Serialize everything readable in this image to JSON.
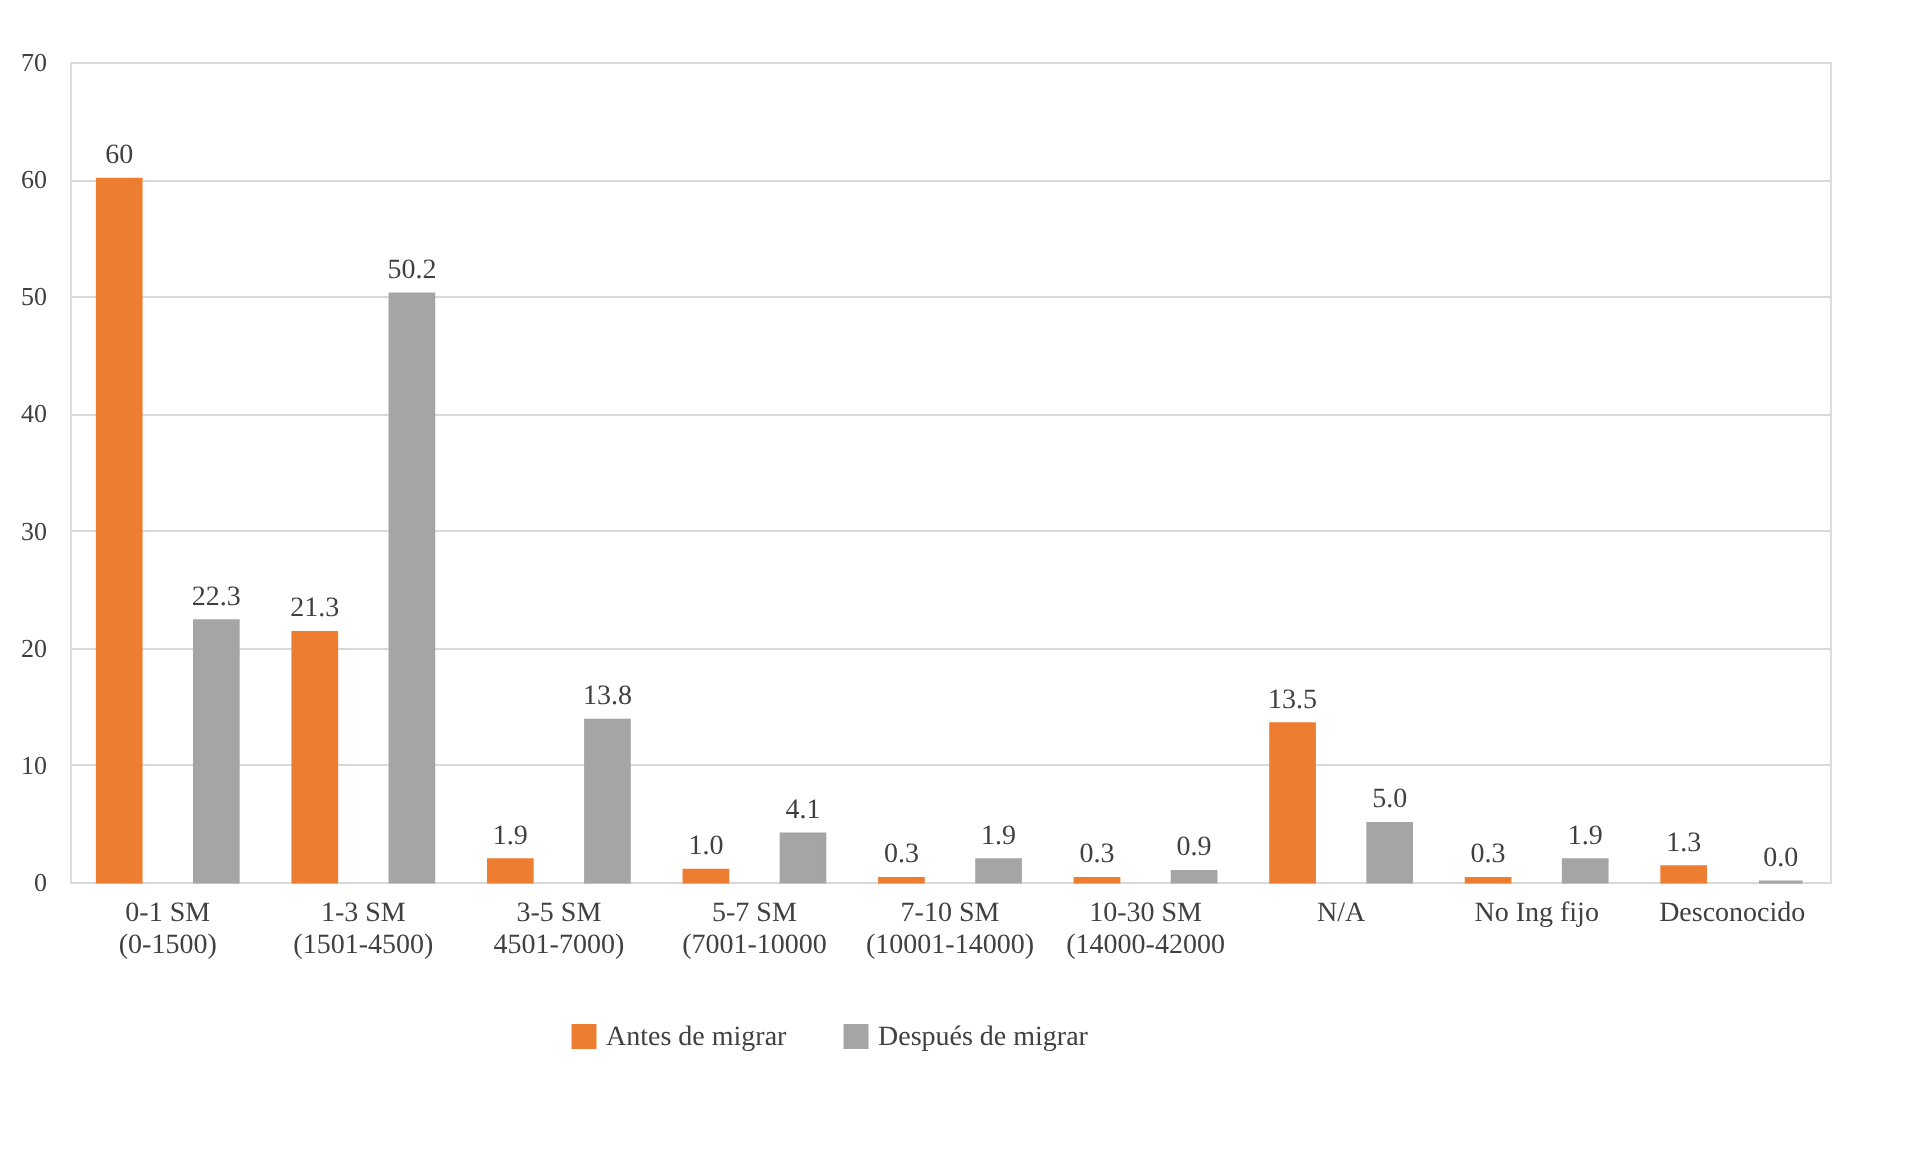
{
  "chart_data": {
    "type": "bar",
    "categories": [
      "0-1 SM (0-1500)",
      "1-3 SM (1501-4500)",
      "3-5 SM 4501-7000)",
      "5-7 SM (7001-10000",
      "7-10 SM (10001-14000)",
      "10-30 SM (14000-42000",
      "N/A",
      "No Ing fijo",
      "Desconocido"
    ],
    "series": [
      {
        "name": "Antes de migrar",
        "color": "#ed7d31",
        "values": [
          60,
          21.3,
          1.9,
          1.0,
          0.3,
          0.3,
          13.5,
          0.3,
          1.3
        ],
        "value_labels": [
          "60",
          "21.3",
          "1.9",
          "1.0",
          "0.3",
          "0.3",
          "13.5",
          "0.3",
          "1.3"
        ]
      },
      {
        "name": "Después de migrar",
        "color": "#a5a5a5",
        "values": [
          22.3,
          50.2,
          13.8,
          4.1,
          1.9,
          0.9,
          5.0,
          1.9,
          0.0
        ],
        "value_labels": [
          "22.3",
          "50.2",
          "13.8",
          "4.1",
          "1.9",
          "0.9",
          "5.0",
          "1.9",
          "0.0"
        ]
      }
    ],
    "ylim": [
      0,
      70
    ],
    "yticks": [
      0,
      10,
      20,
      30,
      40,
      50,
      60,
      70
    ],
    "grid": "y",
    "legend": "bottom"
  }
}
